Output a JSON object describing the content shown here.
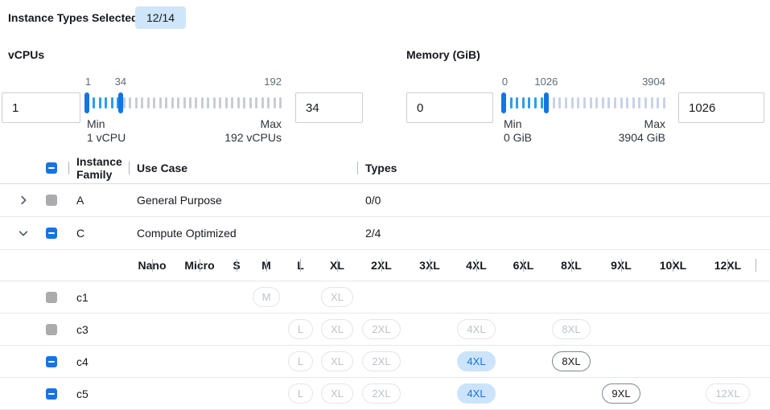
{
  "summary": {
    "label": "Instance Types Selected:",
    "badge": "12/14"
  },
  "vcpus": {
    "title": "vCPUs",
    "from_value": "1",
    "to_value": "34",
    "scale": {
      "start": "1",
      "current": "34",
      "end": "192"
    },
    "min_label": "Min",
    "min_value": "1 vCPU",
    "max_label": "Max",
    "max_value": "192 vCPUs",
    "slider": {
      "min": 1,
      "max": 192,
      "low": 1,
      "high": 34,
      "ticks": 33,
      "unselected_color": "#c9ccd2"
    }
  },
  "memory": {
    "title": "Memory (GiB)",
    "from_value": "0",
    "to_value": "1026",
    "scale": {
      "start": "0",
      "current": "1026",
      "end": "3904"
    },
    "min_label": "Min",
    "min_value": "0 GiB",
    "max_label": "Max",
    "max_value": "3904 GiB",
    "slider": {
      "min": 0,
      "max": 3904,
      "low": 0,
      "high": 1026,
      "ticks": 27,
      "unselected_color": "#c8d2e8"
    }
  },
  "table": {
    "header": {
      "family": "Instance Family",
      "use_case": "Use Case",
      "types": "Types"
    },
    "families": [
      {
        "name": "A",
        "use_case": "General Purpose",
        "types": "0/0",
        "expanded": false,
        "checkbox": "gray"
      },
      {
        "name": "C",
        "use_case": "Compute Optimized",
        "types": "2/4",
        "expanded": true,
        "checkbox": "blue"
      }
    ],
    "sizes": [
      "Nano",
      "Micro",
      "S",
      "M",
      "L",
      "XL",
      "2XL",
      "3XL",
      "4XL",
      "6XL",
      "8XL",
      "9XL",
      "10XL",
      "12XL"
    ],
    "instance_rows": [
      {
        "name": "c1",
        "checkbox": "gray",
        "pills": {
          "M": "disabled",
          "XL": "disabled"
        }
      },
      {
        "name": "c3",
        "checkbox": "gray",
        "pills": {
          "L": "disabled",
          "XL": "disabled",
          "2XL": "disabled",
          "4XL": "disabled",
          "8XL": "disabled"
        }
      },
      {
        "name": "c4",
        "checkbox": "blue",
        "pills": {
          "L": "disabled",
          "XL": "disabled",
          "2XL": "disabled",
          "4XL": "selected",
          "8XL": "enabled"
        }
      },
      {
        "name": "c5",
        "checkbox": "blue",
        "pills": {
          "L": "disabled",
          "XL": "disabled",
          "2XL": "disabled",
          "4XL": "selected",
          "9XL": "enabled",
          "12XL": "disabled"
        }
      }
    ]
  },
  "colors": {
    "accent_blue": "#1673e6",
    "tick_selected": "#2b9df2",
    "badge_bg": "#cfe5fa",
    "selected_pill_bg": "#cbe4fb",
    "checkbox_gray": "#ababae"
  }
}
